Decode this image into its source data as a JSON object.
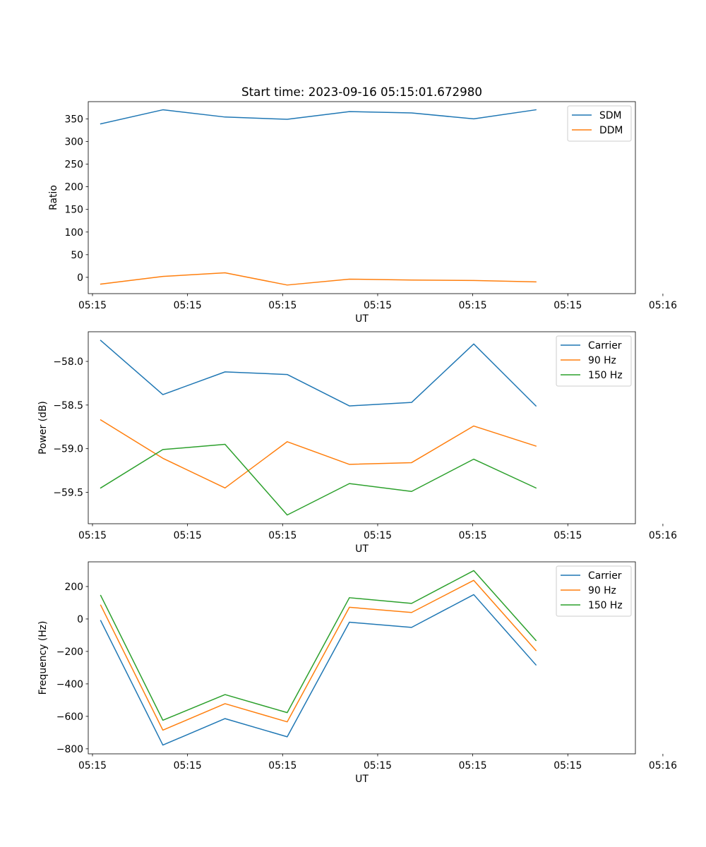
{
  "figure_title": "Start time: 2023-09-16 05:15:01.672980",
  "colors": {
    "c0": "#1f77b4",
    "c1": "#ff7f0e",
    "c2": "#2ca02c"
  },
  "chart_data": [
    {
      "type": "line",
      "title": "Start time: 2023-09-16 05:15:01.672980",
      "xlabel": "UT",
      "ylabel": "Ratio",
      "x": [
        0,
        1,
        2,
        3,
        4,
        5,
        6,
        7
      ],
      "xlim": [
        -0.2,
        8.6
      ],
      "x_ticks": [
        -0.132,
        1.397,
        2.926,
        4.455,
        5.984,
        7.513,
        9.042
      ],
      "x_tick_labels": [
        "05:15",
        "05:15",
        "05:15",
        "05:15",
        "05:15",
        "05:15",
        "05:16"
      ],
      "ylim": [
        -36,
        388
      ],
      "y_ticks": [
        0,
        50,
        100,
        150,
        200,
        250,
        300,
        350
      ],
      "y_tick_labels": [
        "0",
        "50",
        "100",
        "150",
        "200",
        "250",
        "300",
        "350"
      ],
      "legend": "top-right",
      "series": [
        {
          "name": "SDM",
          "color": "#1f77b4",
          "values": [
            339,
            370,
            354,
            349,
            366,
            363,
            350,
            370
          ]
        },
        {
          "name": "DDM",
          "color": "#ff7f0e",
          "values": [
            -15,
            2,
            10,
            -17,
            -4,
            -6,
            -7,
            -10
          ]
        }
      ]
    },
    {
      "type": "line",
      "title": "",
      "xlabel": "UT",
      "ylabel": "Power (dB)",
      "x": [
        0,
        1,
        2,
        3,
        4,
        5,
        6,
        7
      ],
      "xlim": [
        -0.2,
        8.6
      ],
      "x_ticks": [
        -0.132,
        1.397,
        2.926,
        4.455,
        5.984,
        7.513,
        9.042
      ],
      "x_tick_labels": [
        "05:15",
        "05:15",
        "05:15",
        "05:15",
        "05:15",
        "05:15",
        "05:16"
      ],
      "ylim": [
        -59.86,
        -57.66
      ],
      "y_ticks": [
        -58.0,
        -58.5,
        -59.0,
        -59.5
      ],
      "y_tick_labels": [
        "−58.0",
        "−58.5",
        "−59.0",
        "−59.5"
      ],
      "legend": "top-right",
      "series": [
        {
          "name": "Carrier",
          "color": "#1f77b4",
          "values": [
            -57.76,
            -58.38,
            -58.12,
            -58.15,
            -58.51,
            -58.47,
            -57.8,
            -58.51
          ]
        },
        {
          "name": "90 Hz",
          "color": "#ff7f0e",
          "values": [
            -58.67,
            -59.11,
            -59.45,
            -58.92,
            -59.18,
            -59.16,
            -58.74,
            -58.97
          ]
        },
        {
          "name": "150 Hz",
          "color": "#2ca02c",
          "values": [
            -59.45,
            -59.01,
            -58.95,
            -59.76,
            -59.4,
            -59.49,
            -59.12,
            -59.45
          ]
        }
      ]
    },
    {
      "type": "line",
      "title": "",
      "xlabel": "UT",
      "ylabel": "Frequency (Hz)",
      "x": [
        0,
        1,
        2,
        3,
        4,
        5,
        6,
        7
      ],
      "xlim": [
        -0.2,
        8.6
      ],
      "x_ticks": [
        -0.132,
        1.397,
        2.926,
        4.455,
        5.984,
        7.513,
        9.042
      ],
      "x_tick_labels": [
        "05:15",
        "05:15",
        "05:15",
        "05:15",
        "05:15",
        "05:15",
        "05:16"
      ],
      "ylim": [
        -831,
        352
      ],
      "y_ticks": [
        200,
        0,
        -200,
        -400,
        -600,
        -800
      ],
      "y_tick_labels": [
        "200",
        "0",
        "−200",
        "−400",
        "−600",
        "−800"
      ],
      "legend": "top-right",
      "series": [
        {
          "name": "Carrier",
          "color": "#1f77b4",
          "values": [
            -10,
            -777,
            -614,
            -726,
            -20,
            -52,
            150,
            -283
          ]
        },
        {
          "name": "90 Hz",
          "color": "#ff7f0e",
          "values": [
            85,
            -685,
            -522,
            -634,
            72,
            40,
            238,
            -194
          ]
        },
        {
          "name": "150 Hz",
          "color": "#2ca02c",
          "values": [
            145,
            -624,
            -466,
            -577,
            131,
            96,
            298,
            -132
          ]
        }
      ]
    }
  ]
}
